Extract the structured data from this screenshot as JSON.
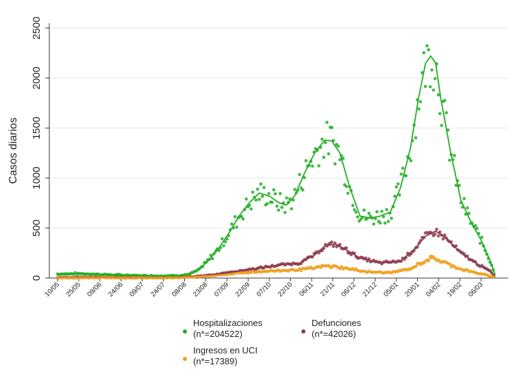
{
  "chart_data": {
    "type": "scatter",
    "ylabel": "Casos diarios",
    "ylim": [
      0,
      2500
    ],
    "y_ticks": [
      0,
      500,
      1000,
      1500,
      2000,
      2500
    ],
    "x_ticks": [
      "10/05",
      "25/05",
      "09/06",
      "24/06",
      "09/07",
      "24/07",
      "08/08",
      "23/08",
      "07/09",
      "22/09",
      "07/10",
      "22/10",
      "06/11",
      "21/11",
      "06/12",
      "21/12",
      "05/01",
      "20/01",
      "04/02",
      "19/02",
      "06/03"
    ],
    "series": [
      {
        "name": "Hospitalizaciones",
        "legend_line2": "(n*=204522)",
        "color": "#1fae22",
        "trend": [
          [
            0,
            40
          ],
          [
            2,
            45
          ],
          [
            4,
            38
          ],
          [
            6,
            30
          ],
          [
            8,
            25
          ],
          [
            10,
            22
          ],
          [
            12,
            25
          ],
          [
            13,
            35
          ],
          [
            14,
            80
          ],
          [
            15,
            180
          ],
          [
            16,
            300
          ],
          [
            17,
            450
          ],
          [
            18,
            620
          ],
          [
            19,
            750
          ],
          [
            20,
            850
          ],
          [
            21,
            820
          ],
          [
            22,
            750
          ],
          [
            22.7,
            730
          ],
          [
            23.5,
            820
          ],
          [
            24.5,
            1050
          ],
          [
            25.5,
            1250
          ],
          [
            26.5,
            1380
          ],
          [
            27.2,
            1370
          ],
          [
            28,
            1250
          ],
          [
            29,
            900
          ],
          [
            30,
            620
          ],
          [
            31,
            600
          ],
          [
            32,
            620
          ],
          [
            33,
            660
          ],
          [
            34,
            900
          ],
          [
            35,
            1300
          ],
          [
            35.8,
            1800
          ],
          [
            36.5,
            2150
          ],
          [
            37,
            2220
          ],
          [
            37.5,
            2150
          ],
          [
            38,
            1800
          ],
          [
            39,
            1250
          ],
          [
            40,
            780
          ],
          [
            41,
            560
          ],
          [
            42,
            380
          ],
          [
            43,
            150
          ],
          [
            43.4,
            30
          ]
        ]
      },
      {
        "name": "Defunciones",
        "legend_line2": "(n*=42026)",
        "color": "#8c3a4c",
        "trend": [
          [
            0,
            5
          ],
          [
            4,
            8
          ],
          [
            8,
            5
          ],
          [
            12,
            8
          ],
          [
            14,
            20
          ],
          [
            16,
            40
          ],
          [
            18,
            70
          ],
          [
            20,
            100
          ],
          [
            22,
            130
          ],
          [
            24,
            150
          ],
          [
            25.5,
            230
          ],
          [
            26.5,
            320
          ],
          [
            27.5,
            340
          ],
          [
            28.5,
            290
          ],
          [
            30,
            200
          ],
          [
            32,
            150
          ],
          [
            34,
            170
          ],
          [
            35.5,
            300
          ],
          [
            36.5,
            420
          ],
          [
            37.5,
            470
          ],
          [
            38.5,
            400
          ],
          [
            40,
            250
          ],
          [
            41.5,
            150
          ],
          [
            43,
            60
          ],
          [
            43.4,
            15
          ]
        ]
      },
      {
        "name": "Ingresos en UCI",
        "legend_line2": "(n*=17389)",
        "color": "#f0a020",
        "trend": [
          [
            0,
            3
          ],
          [
            4,
            5
          ],
          [
            8,
            3
          ],
          [
            12,
            5
          ],
          [
            14,
            15
          ],
          [
            16,
            30
          ],
          [
            18,
            50
          ],
          [
            20,
            65
          ],
          [
            22,
            75
          ],
          [
            24,
            85
          ],
          [
            25.5,
            100
          ],
          [
            26.5,
            120
          ],
          [
            27.5,
            115
          ],
          [
            29,
            90
          ],
          [
            31,
            60
          ],
          [
            33,
            55
          ],
          [
            35,
            90
          ],
          [
            36,
            150
          ],
          [
            37,
            200
          ],
          [
            37.5,
            190
          ],
          [
            38.5,
            150
          ],
          [
            40,
            90
          ],
          [
            42,
            40
          ],
          [
            43.4,
            10
          ]
        ]
      }
    ],
    "legend_position": "bottom"
  }
}
